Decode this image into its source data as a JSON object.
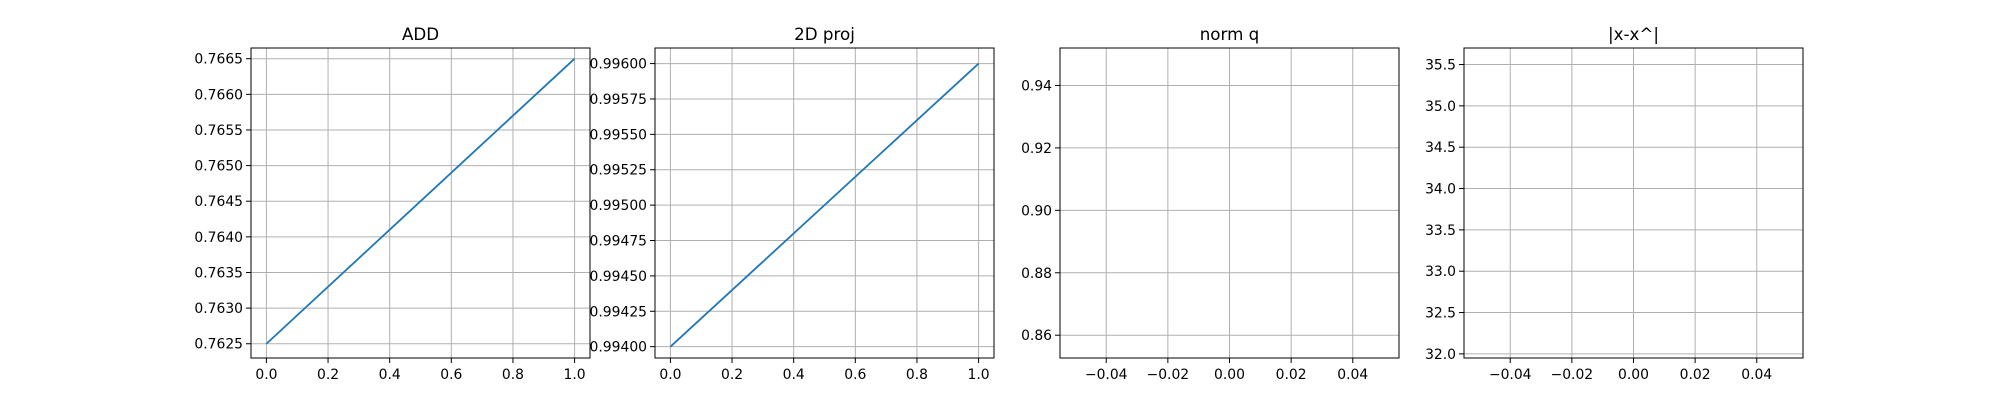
{
  "chart_data": [
    {
      "type": "line",
      "title": "ADD",
      "xlabel": "",
      "ylabel": "",
      "xlim": [
        -0.05,
        1.05
      ],
      "ylim": [
        0.7623,
        0.76665
      ],
      "xticks": [
        0.0,
        0.2,
        0.4,
        0.6,
        0.8,
        1.0
      ],
      "xtick_labels": [
        "0.0",
        "0.2",
        "0.4",
        "0.6",
        "0.8",
        "1.0"
      ],
      "yticks": [
        0.7625,
        0.763,
        0.7635,
        0.764,
        0.7645,
        0.765,
        0.7655,
        0.766,
        0.7665
      ],
      "ytick_labels": [
        "0.7625",
        "0.7630",
        "0.7635",
        "0.7640",
        "0.7645",
        "0.7650",
        "0.7655",
        "0.7660",
        "0.7665"
      ],
      "grid": true,
      "series": [
        {
          "x": [
            0,
            1
          ],
          "y": [
            0.7625,
            0.7665
          ],
          "color": "#1f77b4"
        }
      ]
    },
    {
      "type": "line",
      "title": "2D proj",
      "xlabel": "",
      "ylabel": "",
      "xlim": [
        -0.05,
        1.05
      ],
      "ylim": [
        0.99392,
        0.99611
      ],
      "xticks": [
        0.0,
        0.2,
        0.4,
        0.6,
        0.8,
        1.0
      ],
      "xtick_labels": [
        "0.0",
        "0.2",
        "0.4",
        "0.6",
        "0.8",
        "1.0"
      ],
      "yticks": [
        0.994,
        0.99425,
        0.9945,
        0.99475,
        0.995,
        0.99525,
        0.9955,
        0.99575,
        0.996
      ],
      "ytick_labels": [
        "0.99400",
        "0.99425",
        "0.99450",
        "0.99475",
        "0.99500",
        "0.99525",
        "0.99550",
        "0.99575",
        "0.99600"
      ],
      "grid": true,
      "series": [
        {
          "x": [
            0,
            1
          ],
          "y": [
            0.994,
            0.996
          ],
          "color": "#1f77b4"
        }
      ]
    },
    {
      "type": "line",
      "title": "norm q",
      "xlabel": "",
      "ylabel": "",
      "xlim": [
        -0.055,
        0.055
      ],
      "ylim": [
        0.8527,
        0.952
      ],
      "xticks": [
        -0.04,
        -0.02,
        0.0,
        0.02,
        0.04
      ],
      "xtick_labels": [
        "−0.04",
        "−0.02",
        "0.00",
        "0.02",
        "0.04"
      ],
      "yticks": [
        0.86,
        0.88,
        0.9,
        0.92,
        0.94
      ],
      "ytick_labels": [
        "0.86",
        "0.88",
        "0.90",
        "0.92",
        "0.94"
      ],
      "grid": true,
      "series": []
    },
    {
      "type": "line",
      "title": "|x-x^|",
      "xlabel": "",
      "ylabel": "",
      "xlim": [
        -0.055,
        0.055
      ],
      "ylim": [
        31.95,
        35.7
      ],
      "xticks": [
        -0.04,
        -0.02,
        0.0,
        0.02,
        0.04
      ],
      "xtick_labels": [
        "−0.04",
        "−0.02",
        "0.00",
        "0.02",
        "0.04"
      ],
      "yticks": [
        32.0,
        32.5,
        33.0,
        33.5,
        34.0,
        34.5,
        35.0,
        35.5
      ],
      "ytick_labels": [
        "32.0",
        "32.5",
        "33.0",
        "33.5",
        "34.0",
        "34.5",
        "35.0",
        "35.5"
      ],
      "grid": true,
      "series": []
    }
  ],
  "colors": {
    "line": "#1f77b4",
    "grid": "#b0b0b0",
    "axes": "#000000"
  }
}
